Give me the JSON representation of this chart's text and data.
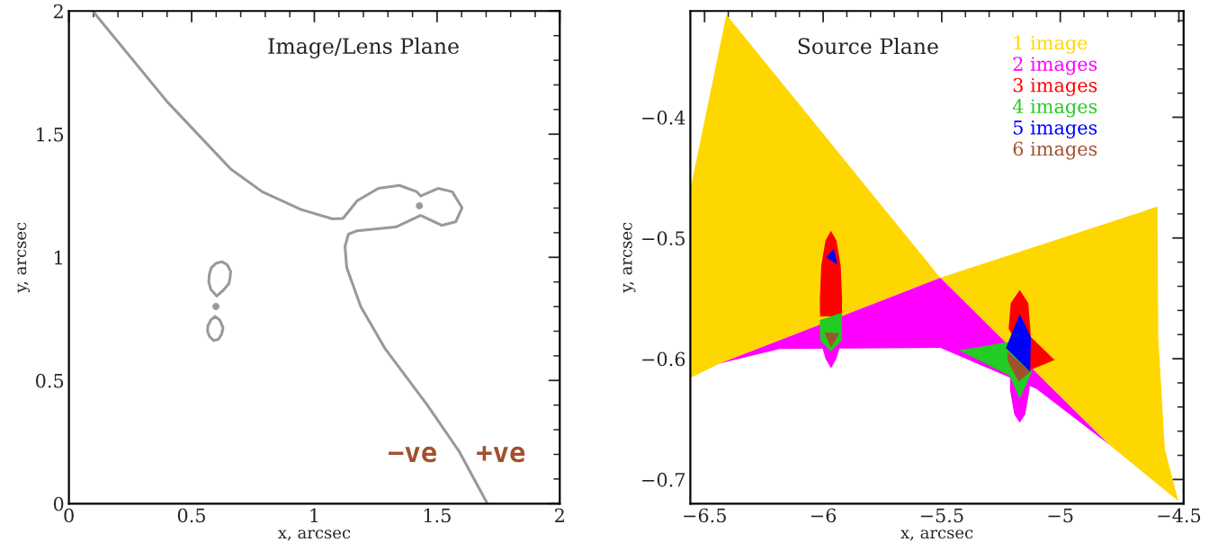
{
  "chart_data": [
    {
      "type": "line",
      "title": "Image/Lens Plane",
      "xlabel": "x, arcsec",
      "ylabel": "y, arcsec",
      "xlim": [
        0,
        2
      ],
      "ylim": [
        0,
        2
      ],
      "xticks": [
        0,
        0.5,
        1,
        1.5,
        2
      ],
      "yticks": [
        0,
        0.5,
        1,
        1.5,
        2
      ],
      "grid": false,
      "legend": false,
      "marker": "none",
      "line_style": "solid",
      "series": [
        {
          "color": "#999999",
          "x": [
            0.097,
            0.401,
            0.659,
            0.788,
            0.946,
            1.074,
            1.117,
            1.175,
            1.261,
            1.347,
            1.418,
            1.433,
            1.504,
            1.562,
            1.602,
            1.576,
            1.519,
            1.433,
            1.332,
            1.175,
            1.139,
            1.125,
            1.132,
            1.189,
            1.289,
            1.461,
            1.59,
            1.705
          ],
          "values": [
            2.0,
            1.631,
            1.359,
            1.266,
            1.194,
            1.156,
            1.158,
            1.23,
            1.28,
            1.292,
            1.266,
            1.249,
            1.28,
            1.266,
            1.201,
            1.144,
            1.13,
            1.17,
            1.123,
            1.108,
            1.094,
            1.044,
            0.958,
            0.8,
            0.628,
            0.399,
            0.212,
            0
          ]
        },
        {
          "color": "#999999",
          "x": [
            0.57,
            0.572,
            0.58,
            0.6,
            0.623,
            0.645,
            0.659,
            null,
            0.57,
            0.578,
            0.602,
            0.628,
            0.652,
            0.657,
            0.659
          ],
          "values": [
            0.9,
            0.93,
            0.958,
            0.976,
            0.982,
            0.97,
            0.943,
            null,
            0.9,
            0.87,
            0.843,
            0.865,
            0.893,
            0.92,
            0.943
          ]
        },
        {
          "color": "#999999",
          "x": [
            0.565,
            0.566,
            0.578,
            0.595,
            0.615,
            0.628,
            null,
            0.565,
            0.573,
            0.59,
            0.609,
            0.622,
            0.628
          ],
          "values": [
            0.7,
            0.721,
            0.745,
            0.76,
            0.745,
            0.714,
            null,
            0.7,
            0.678,
            0.662,
            0.667,
            0.687,
            0.714
          ]
        },
        {
          "type": "scatter",
          "color": "#999999",
          "marker": "circle",
          "x": [
            1.428,
            0.599
          ],
          "values": [
            1.209,
            0.8
          ]
        }
      ],
      "annotations": [
        "−ve",
        "+ve"
      ]
    },
    {
      "type": "area",
      "title": "Source Plane",
      "xlabel": "x, arcsec",
      "ylabel": "y, arcsec",
      "xlim": [
        -6.56,
        -4.48
      ],
      "ylim": [
        -0.72,
        -0.312
      ],
      "xticks": [
        {
          "value": -6.5,
          "label": "−6.5"
        },
        {
          "value": -6,
          "label": "−6"
        },
        {
          "value": -5.5,
          "label": "−5.5"
        },
        {
          "value": -5,
          "label": "−5"
        },
        {
          "value": -4.5,
          "label": "−4.5"
        }
      ],
      "yticks": [
        {
          "value": -0.7,
          "label": "−0.7"
        },
        {
          "value": -0.6,
          "label": "−0.6"
        },
        {
          "value": -0.5,
          "label": "−0.5"
        },
        {
          "value": -0.4,
          "label": "−0.4"
        }
      ],
      "grid": false,
      "legend": "top right",
      "series": [
        {
          "name": "1 image",
          "color": "#ffd700",
          "x": [
            -6.408,
            -5.506,
            -6.437,
            -6.56,
            -6.56,
            null,
            -5.506,
            -4.59,
            -4.587,
            -4.559,
            -4.502,
            -4.795
          ],
          "values": [
            -0.315,
            -0.533,
            -0.604,
            -0.616,
            -0.46,
            null,
            -0.533,
            -0.474,
            -0.582,
            -0.675,
            -0.718,
            -0.671
          ]
        },
        {
          "name": "2 images",
          "color": "#ff00ff",
          "x": [
            -6.437,
            -5.506,
            -4.795,
            -5.1,
            -5.506,
            -6.184,
            null,
            -6.012,
            -5.922,
            -5.944,
            -5.967,
            -5.99,
            null,
            -5.212,
            -5.13,
            -5.13,
            -5.148,
            -5.171,
            -5.194,
            -5.212
          ],
          "values": [
            -0.604,
            -0.533,
            -0.671,
            -0.625,
            -0.591,
            -0.592,
            null,
            -0.585,
            -0.585,
            -0.6,
            -0.608,
            -0.6,
            null,
            -0.614,
            -0.614,
            -0.626,
            -0.646,
            -0.653,
            -0.646,
            -0.626
          ]
        },
        {
          "name": "3 images",
          "color": "#ff0000",
          "x": [
            -5.967,
            -5.944,
            -5.926,
            -5.92,
            -5.921,
            -6.013,
            -6.014,
            -6.008,
            -5.99,
            null,
            -5.171,
            -5.135,
            -5.124,
            -5.024,
            -5.124,
            -5.218,
            -5.209
          ],
          "values": [
            -0.494,
            -0.502,
            -0.523,
            -0.551,
            -0.565,
            -0.565,
            -0.551,
            -0.523,
            -0.502,
            null,
            -0.543,
            -0.554,
            -0.582,
            -0.601,
            -0.609,
            -0.575,
            -0.554
          ]
        },
        {
          "name": "4 images",
          "color": "#22cc22",
          "x": [
            -6.014,
            -5.921,
            -5.922,
            -5.967,
            -6.012,
            null,
            -5.427,
            -5.215,
            -5.12,
            -5.171,
            -5.214
          ],
          "values": [
            -0.568,
            -0.562,
            -0.585,
            -0.594,
            -0.585,
            null,
            -0.593,
            -0.586,
            -0.611,
            -0.633,
            -0.614
          ]
        },
        {
          "name": "5 images",
          "color": "#0000ff",
          "x": [
            -5.987,
            -5.955,
            -5.94,
            null,
            -5.171,
            -5.124,
            -5.127,
            -5.229
          ],
          "values": [
            -0.516,
            -0.509,
            -0.522,
            null,
            -0.563,
            -0.582,
            -0.611,
            -0.591
          ]
        },
        {
          "name": "6 images",
          "color": "#a0522d",
          "x": [
            -5.995,
            -5.932,
            -5.967,
            null,
            -5.222,
            -5.127,
            -5.175,
            -5.222
          ],
          "values": [
            -0.578,
            -0.579,
            -0.591,
            null,
            -0.594,
            -0.611,
            -0.619,
            -0.602
          ]
        }
      ]
    }
  ]
}
